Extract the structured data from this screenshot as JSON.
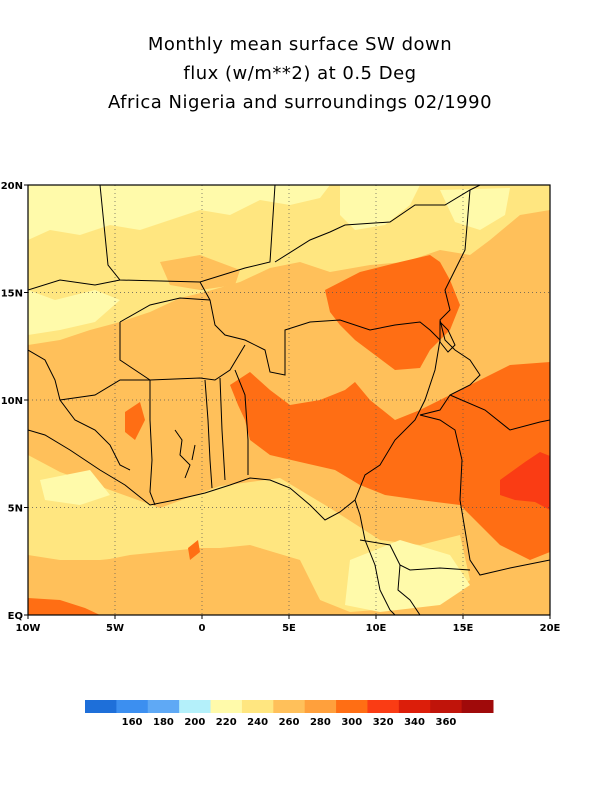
{
  "title": {
    "line1": "Monthly mean surface SW down",
    "line2": "flux (w/m**2) at 0.5 Deg",
    "line3": "Africa Nigeria and surroundings 02/1990"
  },
  "map": {
    "lon_range": [
      -10,
      20
    ],
    "lat_range": [
      0,
      20
    ],
    "lat_ticks": [
      {
        "value": 20,
        "label": "20N"
      },
      {
        "value": 15,
        "label": "15N"
      },
      {
        "value": 10,
        "label": "10N"
      },
      {
        "value": 5,
        "label": "5N"
      },
      {
        "value": 0,
        "label": "EQ"
      }
    ],
    "lon_ticks": [
      {
        "value": -10,
        "label": "10W"
      },
      {
        "value": -5,
        "label": "5W"
      },
      {
        "value": 0,
        "label": "0"
      },
      {
        "value": 5,
        "label": "5E"
      },
      {
        "value": 10,
        "label": "10E"
      },
      {
        "value": 15,
        "label": "15E"
      },
      {
        "value": 20,
        "label": "20E"
      }
    ],
    "grid": "dotted"
  },
  "colorbar": {
    "bins": [
      {
        "color": "#1e6fd9"
      },
      {
        "color": "#3c8ff0"
      },
      {
        "color": "#5fa9f5"
      },
      {
        "color": "#b4f0fa"
      },
      {
        "color": "#fffaaa"
      },
      {
        "color": "#ffe680"
      },
      {
        "color": "#ffc05a"
      },
      {
        "color": "#ffa03c"
      },
      {
        "color": "#ff6e14"
      },
      {
        "color": "#fa3c14"
      },
      {
        "color": "#dc1e0a"
      },
      {
        "color": "#c0140a"
      },
      {
        "color": "#a00a0a"
      }
    ],
    "labels": [
      "160",
      "180",
      "200",
      "220",
      "240",
      "260",
      "280",
      "300",
      "320",
      "340",
      "360"
    ]
  }
}
